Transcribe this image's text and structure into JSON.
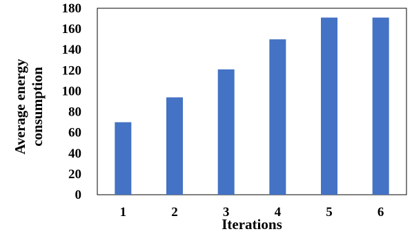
{
  "chart_data": {
    "type": "bar",
    "categories": [
      "1",
      "2",
      "3",
      "4",
      "5",
      "6"
    ],
    "values": [
      70,
      94,
      121,
      150,
      171,
      171
    ],
    "title": "",
    "xlabel": "Iterations",
    "ylabel_lines": [
      "Average energy",
      "consumption"
    ],
    "ylim": [
      0,
      180
    ],
    "yticks": [
      0,
      20,
      40,
      60,
      80,
      100,
      120,
      140,
      160,
      180
    ],
    "grid": false,
    "legend": "none",
    "bar_color": "#4472C4",
    "frame": true
  }
}
